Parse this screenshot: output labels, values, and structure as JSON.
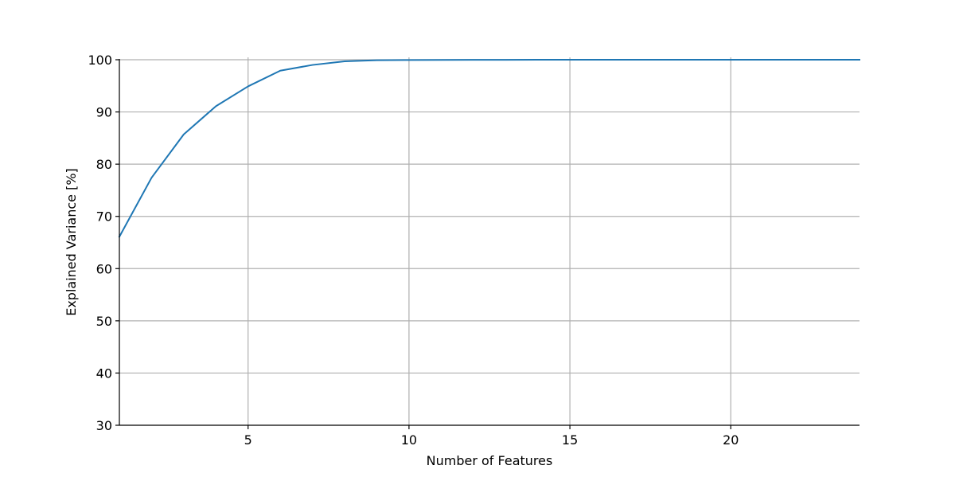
{
  "chart_data": {
    "type": "line",
    "title": "",
    "xlabel": "Number of Features",
    "ylabel": "Explained Variance [%]",
    "xlim": [
      1,
      24
    ],
    "ylim": [
      30,
      100
    ],
    "x_ticks": [
      5,
      10,
      15,
      20
    ],
    "y_ticks": [
      30,
      40,
      50,
      60,
      70,
      80,
      90,
      100
    ],
    "x_tick_labels": [
      "5",
      "10",
      "15",
      "20"
    ],
    "y_tick_labels": [
      "30",
      "40",
      "50",
      "60",
      "70",
      "80",
      "90",
      "100"
    ],
    "grid": true,
    "legend": "none",
    "colors": {
      "line": "#1f77b4",
      "grid": "#b0b0b0",
      "axis": "#000000"
    },
    "series": [
      {
        "x": [
          1,
          2,
          3,
          4,
          5,
          6,
          7,
          8,
          9,
          10,
          11,
          12,
          13,
          14,
          15,
          16,
          17,
          18,
          19,
          20,
          21,
          22,
          23,
          24
        ],
        "values": [
          66.1,
          77.4,
          85.7,
          91.1,
          94.9,
          97.9,
          99.0,
          99.7,
          99.9,
          99.95,
          99.97,
          99.98,
          99.99,
          100,
          100,
          100,
          100,
          100,
          100,
          100,
          100,
          100,
          100,
          100
        ]
      }
    ]
  }
}
